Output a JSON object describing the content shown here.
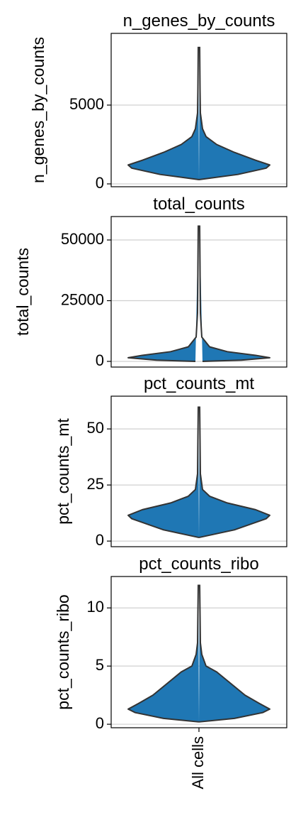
{
  "chart_data": [
    {
      "type": "violin",
      "title": "n_genes_by_counts",
      "ylabel": "n_genes_by_counts",
      "color": "#1f77b4",
      "ylim": [
        -180,
        9550
      ],
      "yticks": [
        0,
        5000
      ],
      "grid": true,
      "density": {
        "y": [
          270,
          600,
          1000,
          1200,
          1500,
          2000,
          2500,
          3000,
          3500,
          4500,
          6000,
          8700
        ],
        "width": [
          0,
          0.55,
          0.95,
          1.0,
          0.8,
          0.5,
          0.25,
          0.1,
          0.05,
          0.02,
          0.015,
          0.01
        ]
      }
    },
    {
      "type": "violin",
      "title": "total_counts",
      "ylabel": "total_counts",
      "color": "#1f77b4",
      "ylim": [
        -2340,
        59650
      ],
      "yticks": [
        0,
        25000,
        50000
      ],
      "grid": true,
      "density": {
        "y": [
          0,
          500,
          1500,
          2500,
          4000,
          6000,
          10000,
          20000,
          56000
        ],
        "width": [
          0.05,
          0.6,
          1.0,
          0.8,
          0.4,
          0.15,
          0.04,
          0.02,
          0.01
        ]
      }
    },
    {
      "type": "violin",
      "title": "pct_counts_mt",
      "ylabel": "pct_counts_mt",
      "color": "#1f77b4",
      "ylim": [
        -2.5,
        64.6
      ],
      "yticks": [
        0,
        25,
        50
      ],
      "grid": true,
      "density": {
        "y": [
          1.6,
          5,
          10,
          11.5,
          14,
          17,
          20,
          23,
          30,
          60
        ],
        "width": [
          0,
          0.5,
          0.95,
          1.0,
          0.8,
          0.4,
          0.15,
          0.05,
          0.02,
          0.01
        ]
      }
    },
    {
      "type": "violin",
      "title": "pct_counts_ribo",
      "ylabel": "pct_counts_ribo",
      "color": "#1f77b4",
      "ylim": [
        -0.3,
        12.7
      ],
      "yticks": [
        0,
        5,
        10
      ],
      "grid": true,
      "categories": [
        "All cells"
      ],
      "density": {
        "y": [
          0.2,
          0.5,
          1.0,
          1.3,
          1.8,
          2.5,
          3.5,
          4.5,
          5,
          6,
          7,
          12
        ],
        "width": [
          0,
          0.5,
          0.9,
          1.0,
          0.85,
          0.65,
          0.45,
          0.25,
          0.1,
          0.04,
          0.02,
          0.01
        ]
      }
    }
  ]
}
